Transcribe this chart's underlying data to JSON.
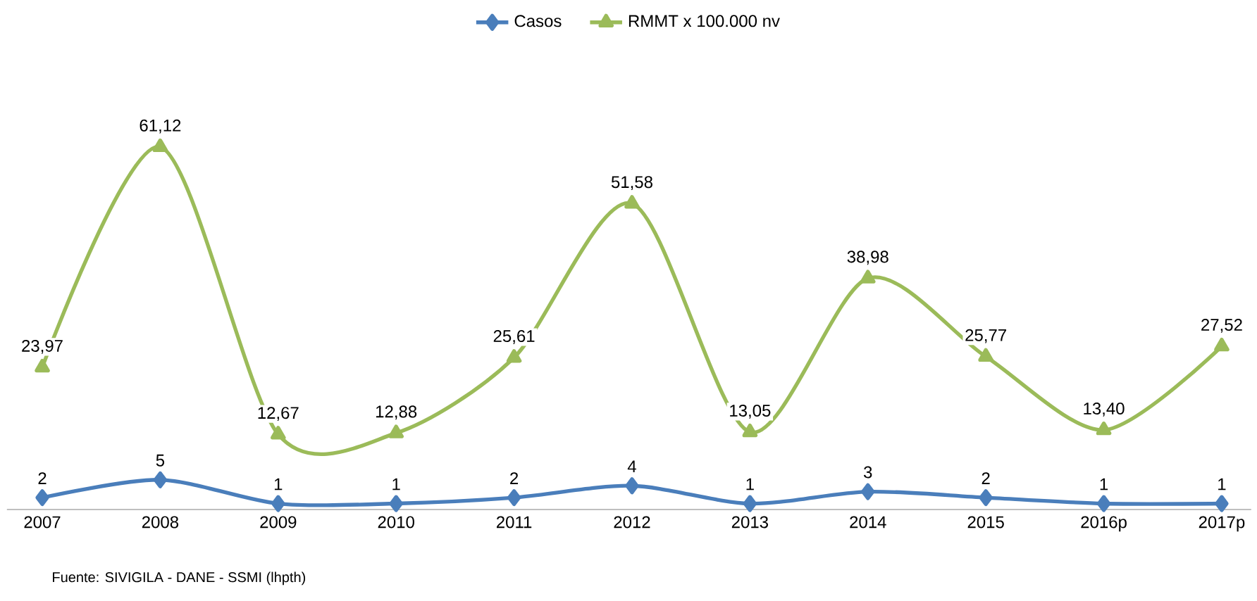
{
  "chart_data": {
    "type": "line",
    "categories": [
      "2007",
      "2008",
      "2009",
      "2010",
      "2011",
      "2012",
      "2013",
      "2014",
      "2015",
      "2016p",
      "2017p"
    ],
    "series": [
      {
        "name": "Casos",
        "color": "#4a7ebb",
        "marker": "diamond",
        "values": [
          2,
          5,
          1,
          1,
          2,
          4,
          1,
          3,
          2,
          1,
          1
        ],
        "value_labels": [
          "2",
          "5",
          "1",
          "1",
          "2",
          "4",
          "1",
          "3",
          "2",
          "1",
          "1"
        ]
      },
      {
        "name": "RMMT x 100.000 nv",
        "color": "#9bbb59",
        "marker": "triangle",
        "values": [
          23.97,
          61.12,
          12.67,
          12.88,
          25.61,
          51.58,
          13.05,
          38.98,
          25.77,
          13.4,
          27.52
        ],
        "value_labels": [
          "23,97",
          "61,12",
          "12,67",
          "12,88",
          "25,61",
          "51,58",
          "13,05",
          "38,98",
          "25,77",
          "13,40",
          "27,52"
        ]
      }
    ],
    "legend": "top",
    "annotations": [
      "Fuente: SIVIGILA  - DANE - SSMI  (lhpth)"
    ]
  }
}
